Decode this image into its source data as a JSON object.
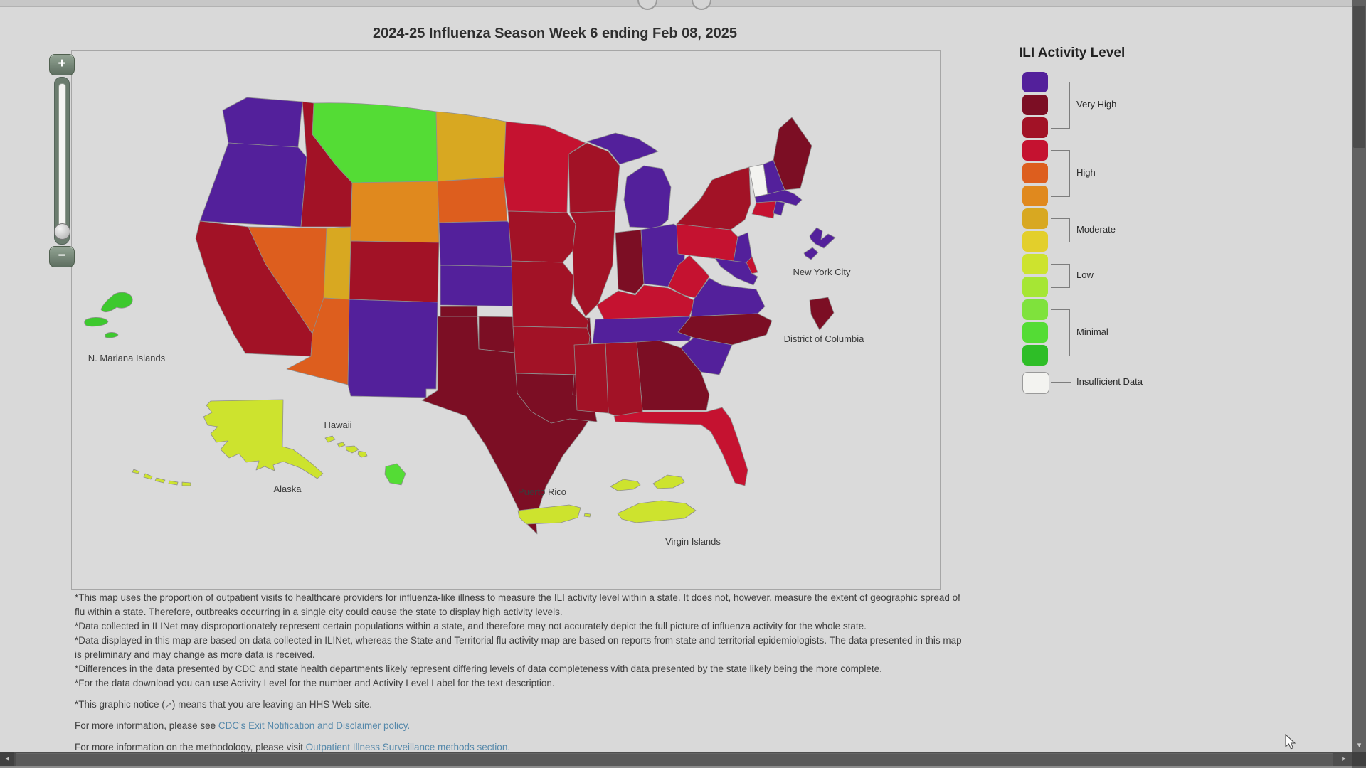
{
  "title": "2024-25 Influenza Season Week 6 ending Feb 08, 2025",
  "legend": {
    "title": "ILI Activity Level",
    "groups": [
      {
        "label": "Very High",
        "swatches": [
          "#53209B",
          "#7C0E24",
          "#A21226"
        ]
      },
      {
        "label": "High",
        "swatches": [
          "#C51230",
          "#DD5E1E",
          "#E0891E"
        ]
      },
      {
        "label": "Moderate",
        "swatches": [
          "#D8A821",
          "#E3CF2B"
        ]
      },
      {
        "label": "Low",
        "swatches": [
          "#CDE32E",
          "#A6E634"
        ]
      },
      {
        "label": "Minimal",
        "swatches": [
          "#7FE23C",
          "#54DC35",
          "#2EBE27"
        ]
      },
      {
        "label": "Insufficient Data",
        "swatches": [
          "#F3F3F0"
        ]
      }
    ]
  },
  "zoom_control": {
    "plus": "+",
    "minus": "−"
  },
  "map": {
    "labels": {
      "n_mariana": "N. Mariana Islands",
      "hawaii": "Hawaii",
      "alaska": "Alaska",
      "puerto_rico": "Puerto Rico",
      "virgin_islands": "Virgin Islands",
      "new_york_city": "New York City",
      "district_of_columbia": "District of Columbia"
    },
    "states": [
      {
        "id": "WA",
        "name": "Washington",
        "level": "Very High",
        "color": "#53209B"
      },
      {
        "id": "OR",
        "name": "Oregon",
        "level": "Very High",
        "color": "#53209B"
      },
      {
        "id": "CA",
        "name": "California",
        "level": "Very High",
        "color": "#A21226"
      },
      {
        "id": "NV",
        "name": "Nevada",
        "level": "High",
        "color": "#DD5E1E"
      },
      {
        "id": "ID",
        "name": "Idaho",
        "level": "Very High",
        "color": "#A21226"
      },
      {
        "id": "MT",
        "name": "Montana",
        "level": "Minimal",
        "color": "#54DC35"
      },
      {
        "id": "WY",
        "name": "Wyoming",
        "level": "High",
        "color": "#E0891E"
      },
      {
        "id": "UT",
        "name": "Utah",
        "level": "Moderate",
        "color": "#D8A821"
      },
      {
        "id": "CO",
        "name": "Colorado",
        "level": "Very High",
        "color": "#A21226"
      },
      {
        "id": "AZ",
        "name": "Arizona",
        "level": "High",
        "color": "#DD5E1E"
      },
      {
        "id": "NM",
        "name": "New Mexico",
        "level": "Very High",
        "color": "#53209B"
      },
      {
        "id": "ND",
        "name": "North Dakota",
        "level": "Moderate",
        "color": "#D8A821"
      },
      {
        "id": "SD",
        "name": "South Dakota",
        "level": "High",
        "color": "#DD5E1E"
      },
      {
        "id": "NE",
        "name": "Nebraska",
        "level": "Very High",
        "color": "#53209B"
      },
      {
        "id": "KS",
        "name": "Kansas",
        "level": "Very High",
        "color": "#53209B"
      },
      {
        "id": "OK",
        "name": "Oklahoma",
        "level": "Very High",
        "color": "#7C0E24"
      },
      {
        "id": "TX",
        "name": "Texas",
        "level": "Very High",
        "color": "#7C0E24"
      },
      {
        "id": "MN",
        "name": "Minnesota",
        "level": "High",
        "color": "#C51230"
      },
      {
        "id": "IA",
        "name": "Iowa",
        "level": "Very High",
        "color": "#A21226"
      },
      {
        "id": "MO",
        "name": "Missouri",
        "level": "Very High",
        "color": "#A21226"
      },
      {
        "id": "AR",
        "name": "Arkansas",
        "level": "Very High",
        "color": "#A21226"
      },
      {
        "id": "LA",
        "name": "Louisiana",
        "level": "Very High",
        "color": "#7C0E24"
      },
      {
        "id": "WI",
        "name": "Wisconsin",
        "level": "Very High",
        "color": "#A21226"
      },
      {
        "id": "IL",
        "name": "Illinois",
        "level": "Very High",
        "color": "#A21226"
      },
      {
        "id": "MI",
        "name": "Michigan",
        "level": "Very High",
        "color": "#53209B"
      },
      {
        "id": "IN",
        "name": "Indiana",
        "level": "Very High",
        "color": "#7C0E24"
      },
      {
        "id": "OH",
        "name": "Ohio",
        "level": "Very High",
        "color": "#53209B"
      },
      {
        "id": "KY",
        "name": "Kentucky",
        "level": "High",
        "color": "#C51230"
      },
      {
        "id": "TN",
        "name": "Tennessee",
        "level": "Very High",
        "color": "#53209B"
      },
      {
        "id": "WV",
        "name": "West Virginia",
        "level": "High",
        "color": "#C51230"
      },
      {
        "id": "VA",
        "name": "Virginia",
        "level": "Very High",
        "color": "#53209B"
      },
      {
        "id": "NC",
        "name": "North Carolina",
        "level": "Very High",
        "color": "#7C0E24"
      },
      {
        "id": "SC",
        "name": "South Carolina",
        "level": "Very High",
        "color": "#53209B"
      },
      {
        "id": "GA",
        "name": "Georgia",
        "level": "Very High",
        "color": "#7C0E24"
      },
      {
        "id": "AL",
        "name": "Alabama",
        "level": "Very High",
        "color": "#A21226"
      },
      {
        "id": "MS",
        "name": "Mississippi",
        "level": "Very High",
        "color": "#A21226"
      },
      {
        "id": "FL",
        "name": "Florida",
        "level": "High",
        "color": "#C51230"
      },
      {
        "id": "PA",
        "name": "Pennsylvania",
        "level": "High",
        "color": "#C51230"
      },
      {
        "id": "NY",
        "name": "New York",
        "level": "Very High",
        "color": "#A21226"
      },
      {
        "id": "VT",
        "name": "Vermont",
        "level": "Insufficient Data",
        "color": "#F3F3F0"
      },
      {
        "id": "NH",
        "name": "New Hampshire",
        "level": "Very High",
        "color": "#53209B"
      },
      {
        "id": "ME",
        "name": "Maine",
        "level": "Very High",
        "color": "#7C0E24"
      },
      {
        "id": "MA",
        "name": "Massachusetts",
        "level": "Very High",
        "color": "#53209B"
      },
      {
        "id": "CT",
        "name": "Connecticut",
        "level": "High",
        "color": "#C51230"
      },
      {
        "id": "RI",
        "name": "Rhode Island",
        "level": "Very High",
        "color": "#53209B"
      },
      {
        "id": "NJ",
        "name": "New Jersey",
        "level": "Very High",
        "color": "#53209B"
      },
      {
        "id": "DE",
        "name": "Delaware",
        "level": "High",
        "color": "#C51230"
      },
      {
        "id": "MD",
        "name": "Maryland",
        "level": "Very High",
        "color": "#53209B"
      },
      {
        "id": "DC",
        "name": "District of Columbia",
        "level": "Very High",
        "color": "#7C0E24"
      },
      {
        "id": "NYC",
        "name": "New York City",
        "level": "Very High",
        "color": "#53209B"
      },
      {
        "id": "AK",
        "name": "Alaska",
        "level": "Low",
        "color": "#CDE32E"
      },
      {
        "id": "HI",
        "name": "Hawaii",
        "level": "Low",
        "color": "#CDE32E"
      },
      {
        "id": "HI_BIG",
        "name": "Hawaii (Island of Hawaii)",
        "level": "Minimal",
        "color": "#54DC35"
      },
      {
        "id": "PR",
        "name": "Puerto Rico",
        "level": "Low",
        "color": "#CDE32E"
      },
      {
        "id": "VI",
        "name": "Virgin Islands",
        "level": "Low",
        "color": "#CDE32E"
      },
      {
        "id": "MP",
        "name": "N. Mariana Islands",
        "level": "Minimal",
        "color": "#3DC92E"
      }
    ]
  },
  "footnotes": [
    "*This map uses the proportion of outpatient visits to healthcare providers for influenza-like illness to measure the ILI activity level within a state. It does not, however, measure the extent of geographic spread of flu within a state. Therefore, outbreaks occurring in a single city could cause the state to display high activity levels.",
    "*Data collected in ILINet may disproportionately represent certain populations within a state, and therefore may not accurately depict the full picture of influenza activity for the whole state.",
    "*Data displayed in this map are based on data collected in ILINet, whereas the State and Territorial flu activity map are based on reports from state and territorial epidemiologists. The data presented in this map is preliminary and may change as more data is received.",
    "*Differences in the data presented by CDC and state health departments likely represent differing levels of data completeness with data presented by the state likely being the more complete.",
    "*For the data download you can use Activity Level for the number and Activity Level Label for the text description."
  ],
  "graphic_notice": {
    "pre": "*This graphic notice (",
    "icon": "↗",
    "post": ") means that you are leaving an HHS Web site."
  },
  "info_links": [
    {
      "prefix": "For more information, please see ",
      "link": "CDC's Exit Notification and Disclaimer policy."
    },
    {
      "prefix": "For more information on the methodology, please visit ",
      "link": "Outpatient Illness Surveillance methods section."
    }
  ],
  "scrollbar": {
    "left_arrow": "◂",
    "right_arrow": "▸",
    "down_arrow": "▾"
  }
}
